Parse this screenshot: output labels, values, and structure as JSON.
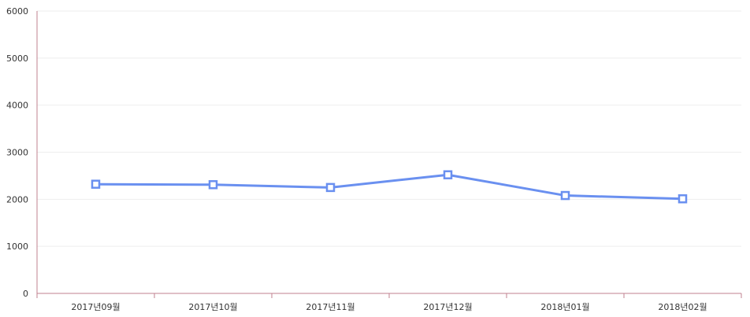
{
  "chart_data": {
    "type": "line",
    "title": "",
    "xlabel": "",
    "ylabel": "",
    "categories": [
      "2017년09월",
      "2017년10월",
      "2017년11월",
      "2017년12월",
      "2018년01월",
      "2018년02월"
    ],
    "series": [
      {
        "values": [
          2320,
          2310,
          2250,
          2520,
          2080,
          2010
        ]
      }
    ],
    "ylim": [
      0,
      6000
    ],
    "yticks": [
      "0",
      "1000",
      "2000",
      "3000",
      "4000",
      "5000",
      "6000"
    ],
    "grid": true,
    "legend": "none",
    "colors": {
      "series": "#6a90f0",
      "axis": "#c0808f",
      "grid": "#eeeeee"
    }
  }
}
